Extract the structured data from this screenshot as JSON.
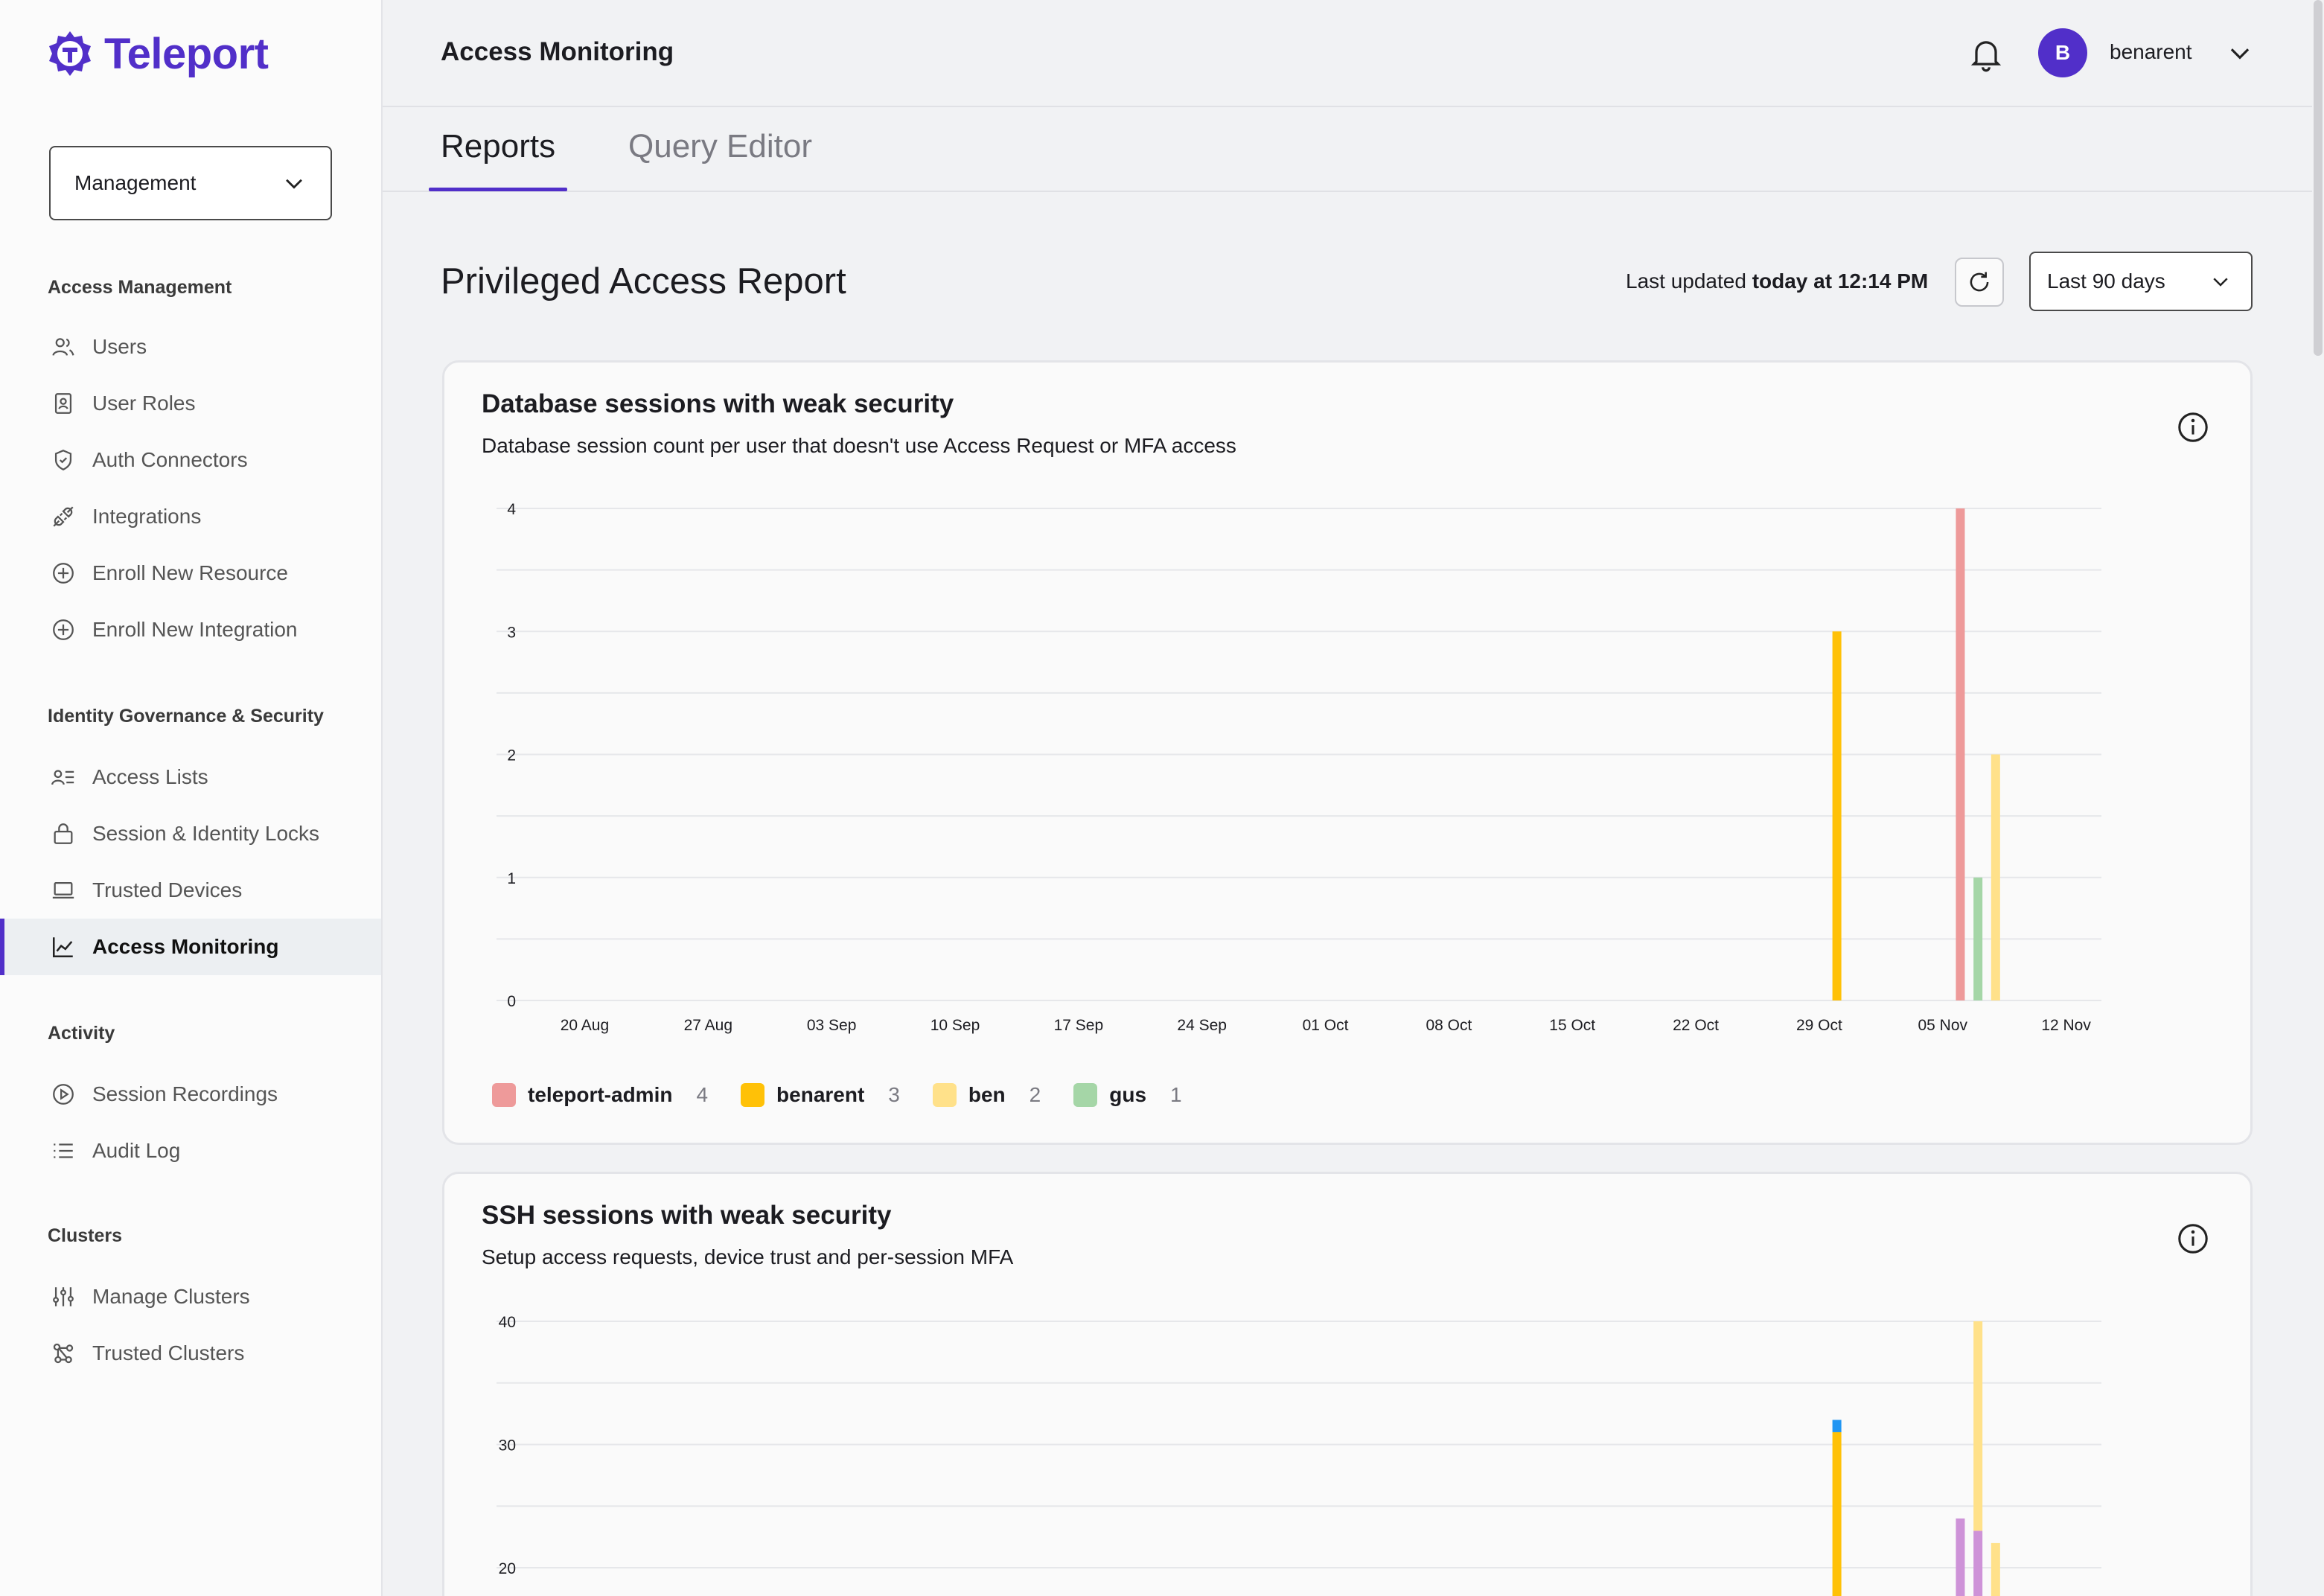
{
  "app": {
    "brand": "Teleport",
    "brand_color": "#512fc9"
  },
  "sidebar": {
    "selector": "Management",
    "sections": [
      {
        "title": "Access Management",
        "items": [
          {
            "label": "Users",
            "icon": "users-icon"
          },
          {
            "label": "User Roles",
            "icon": "user-roles-icon"
          },
          {
            "label": "Auth Connectors",
            "icon": "shield-icon"
          },
          {
            "label": "Integrations",
            "icon": "plug-icon"
          },
          {
            "label": "Enroll New Resource",
            "icon": "plus-circle-icon"
          },
          {
            "label": "Enroll New Integration",
            "icon": "plus-circle-icon"
          }
        ]
      },
      {
        "title": "Identity Governance & Security",
        "items": [
          {
            "label": "Access Lists",
            "icon": "access-lists-icon"
          },
          {
            "label": "Session & Identity Locks",
            "icon": "lock-icon"
          },
          {
            "label": "Trusted Devices",
            "icon": "laptop-icon"
          },
          {
            "label": "Access Monitoring",
            "icon": "chart-line-icon",
            "active": true
          }
        ]
      },
      {
        "title": "Activity",
        "items": [
          {
            "label": "Session Recordings",
            "icon": "play-circle-icon"
          },
          {
            "label": "Audit Log",
            "icon": "list-icon"
          }
        ]
      },
      {
        "title": "Clusters",
        "items": [
          {
            "label": "Manage Clusters",
            "icon": "sliders-icon"
          },
          {
            "label": "Trusted Clusters",
            "icon": "network-icon"
          }
        ]
      }
    ]
  },
  "topbar": {
    "title": "Access Monitoring",
    "avatar_initial": "B",
    "username": "benarent"
  },
  "tabs": [
    {
      "label": "Reports",
      "active": true
    },
    {
      "label": "Query Editor",
      "active": false
    }
  ],
  "report": {
    "title": "Privileged Access Report",
    "last_updated_prefix": "Last updated",
    "last_updated_value": "today at 12:14 PM",
    "range": "Last 90 days"
  },
  "cards": [
    {
      "title": "Database sessions with weak security",
      "subtitle": "Database session count per user that doesn't use Access Request or MFA access",
      "legend": [
        {
          "name": "teleport-admin",
          "count": "4",
          "color": "#ee9a9a"
        },
        {
          "name": "benarent",
          "count": "3",
          "color": "#ffc107"
        },
        {
          "name": "ben",
          "count": "2",
          "color": "#ffe18a"
        },
        {
          "name": "gus",
          "count": "1",
          "color": "#a5d6a7"
        }
      ]
    },
    {
      "title": "SSH sessions with weak security",
      "subtitle": "Setup access requests, device trust and per-session MFA"
    }
  ],
  "chart_data": [
    {
      "type": "bar",
      "title": "Database sessions with weak security",
      "xlabel": "",
      "ylabel": "",
      "ylim": [
        0,
        4
      ],
      "yticks": [
        0,
        1,
        2,
        3,
        4
      ],
      "x_ticks": [
        "20 Aug",
        "27 Aug",
        "03 Sep",
        "10 Sep",
        "17 Sep",
        "24 Sep",
        "01 Oct",
        "08 Oct",
        "15 Oct",
        "22 Oct",
        "29 Oct",
        "05 Nov",
        "12 Nov"
      ],
      "x_range": [
        "2024-08-15",
        "2024-11-14"
      ],
      "bars": [
        {
          "date": "2024-10-30",
          "series": "benarent",
          "value": 3
        },
        {
          "date": "2024-11-06",
          "series": "teleport-admin",
          "value": 4
        },
        {
          "date": "2024-11-07",
          "series": "gus",
          "value": 1
        },
        {
          "date": "2024-11-08",
          "series": "ben",
          "value": 2
        }
      ],
      "grid": true
    },
    {
      "type": "bar",
      "title": "SSH sessions with weak security",
      "xlabel": "",
      "ylabel": "",
      "ylim": [
        0,
        40
      ],
      "yticks": [
        20,
        30,
        40
      ],
      "x_range": [
        "2024-08-15",
        "2024-11-14"
      ],
      "bars": [
        {
          "date": "2024-10-30",
          "segments": [
            {
              "color": "#ffc107",
              "value": 31
            },
            {
              "color": "#2196f3",
              "value": 1
            }
          ]
        },
        {
          "date": "2024-11-06",
          "segments": [
            {
              "color": "#ce93d8",
              "value": 24
            }
          ]
        },
        {
          "date": "2024-11-07",
          "segments": [
            {
              "color": "#a5d6a7",
              "value": 1
            },
            {
              "color": "#ce93d8",
              "value": 22
            },
            {
              "color": "#ffe18a",
              "value": 17
            }
          ]
        },
        {
          "date": "2024-11-08",
          "segments": [
            {
              "color": "#ffe18a",
              "value": 22
            }
          ]
        }
      ],
      "grid": true
    }
  ]
}
